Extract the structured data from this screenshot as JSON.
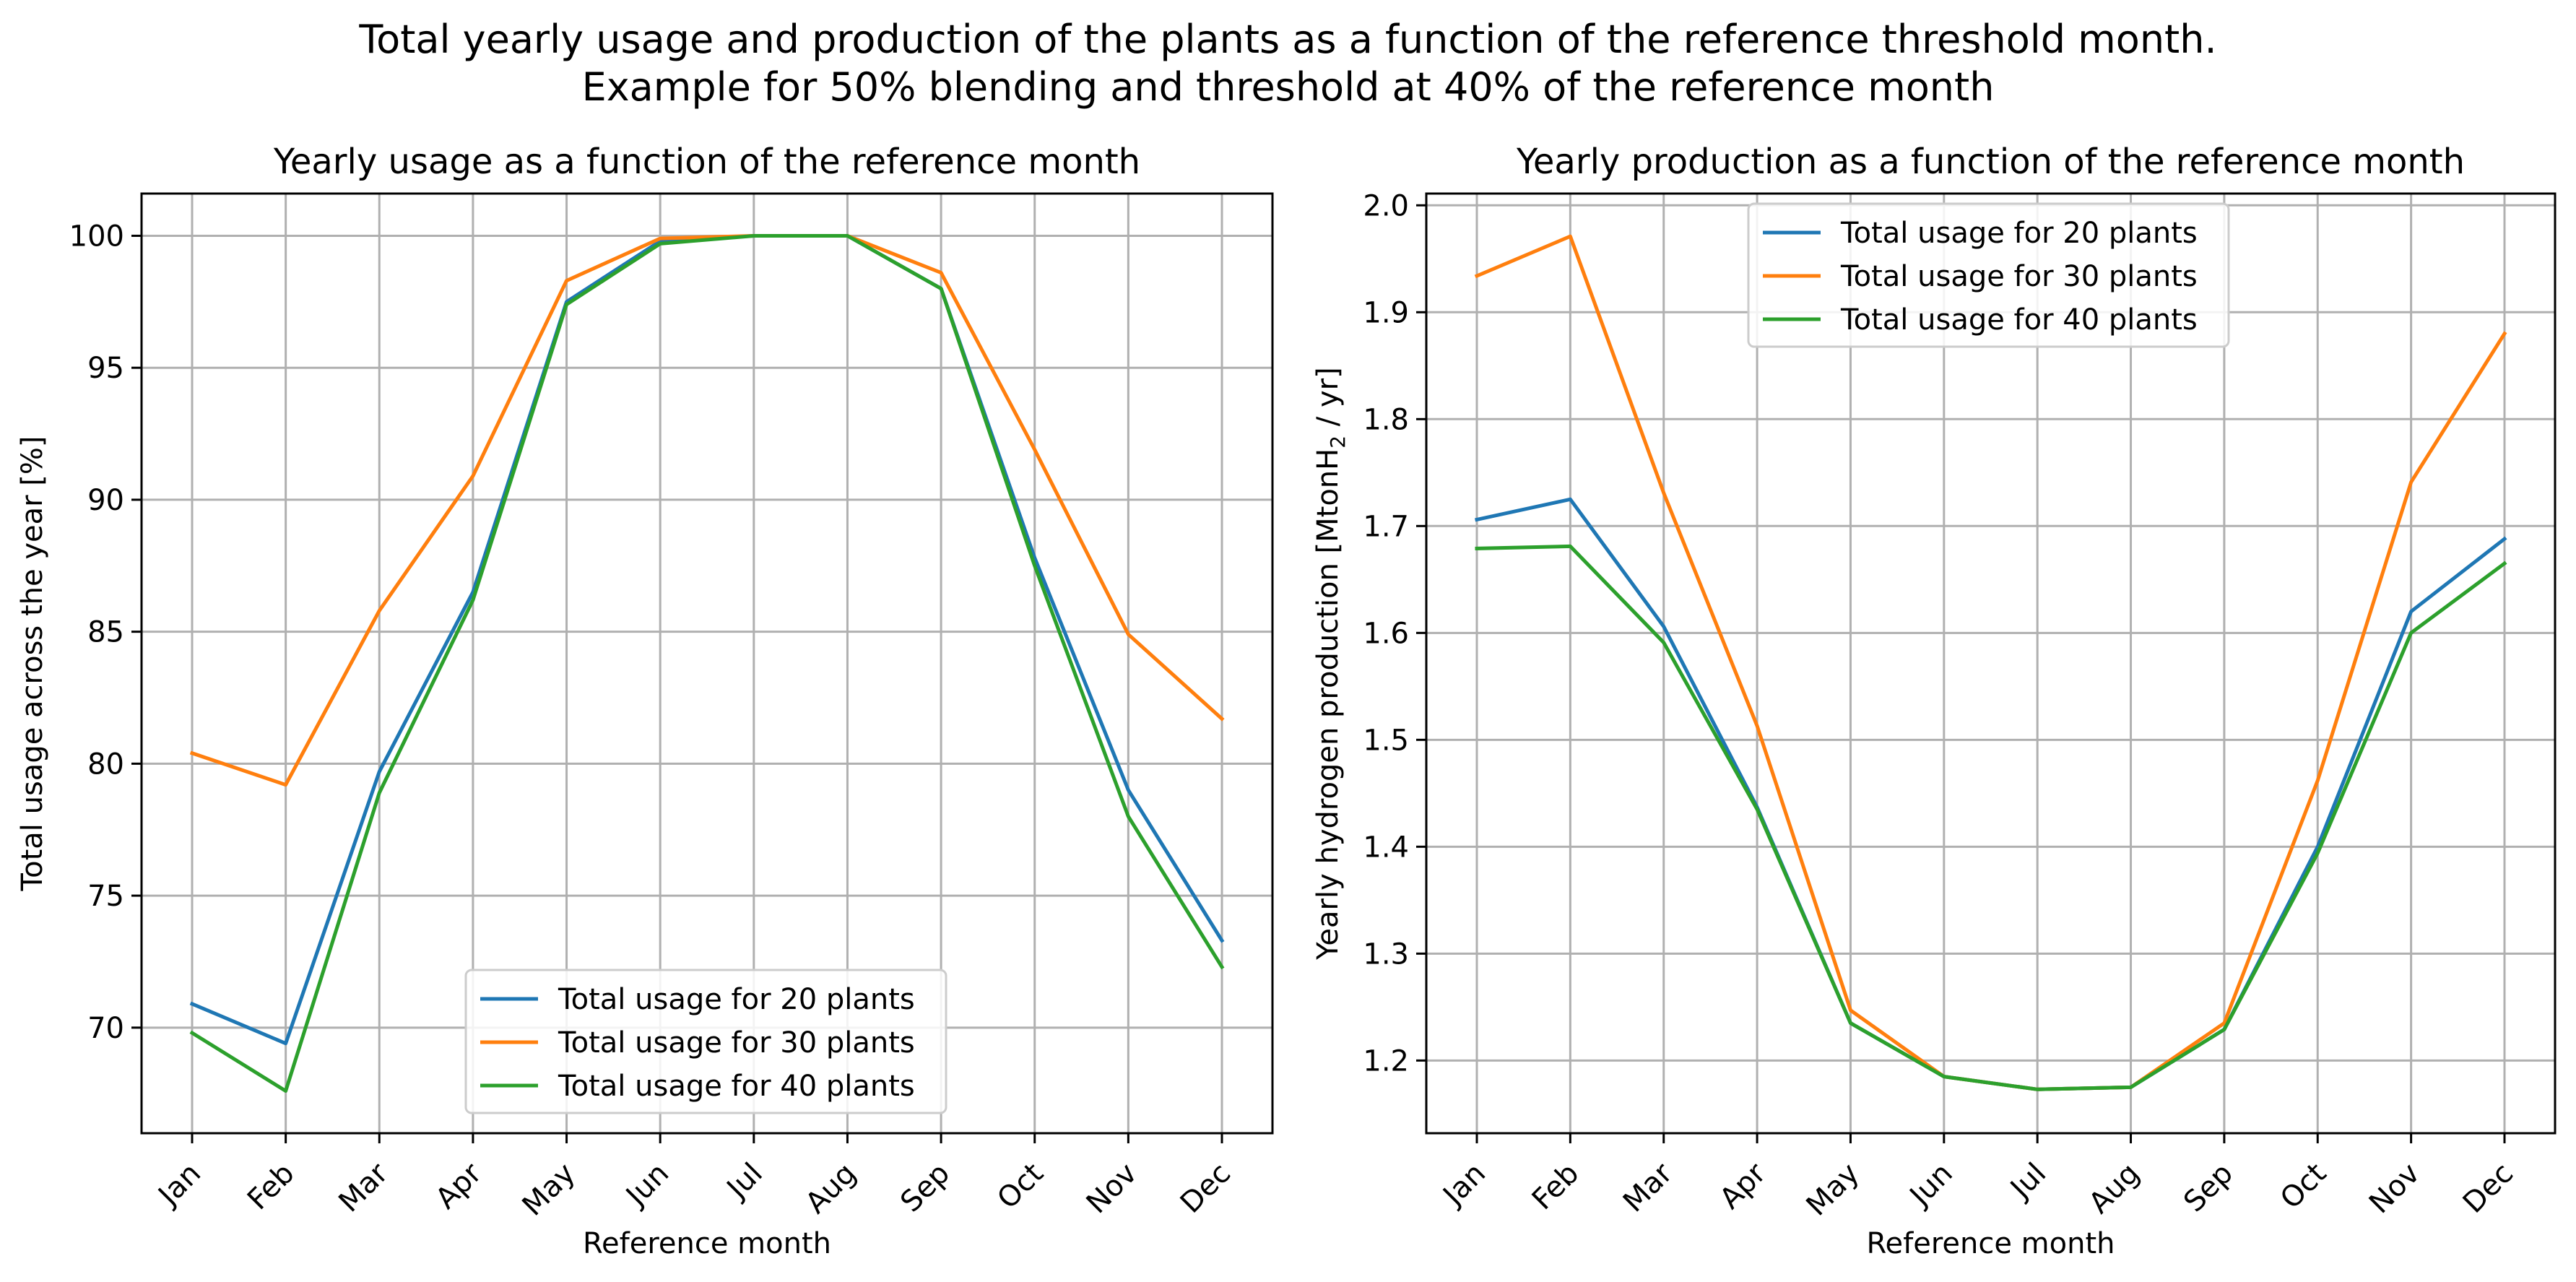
{
  "figure": {
    "suptitle_line1": "Total yearly usage and production of the plants as a function of the reference threshold month.",
    "suptitle_line2": "Example for 50% blending and threshold at 40% of the reference month"
  },
  "colors": {
    "series_20": "#1f77b4",
    "series_30": "#ff7f0e",
    "series_40": "#2ca02c",
    "grid": "#b0b0b0",
    "axis": "#000000"
  },
  "chart_data": [
    {
      "type": "line",
      "title": "Yearly usage as a function of the reference month",
      "xlabel": "Reference month",
      "ylabel": "Total usage across the year [%]",
      "categories": [
        "Jan",
        "Feb",
        "Mar",
        "Apr",
        "May",
        "Jun",
        "Jul",
        "Aug",
        "Sep",
        "Oct",
        "Nov",
        "Dec"
      ],
      "ylim": [
        66.0,
        101.6
      ],
      "yticks": [
        70,
        75,
        80,
        85,
        90,
        95,
        100
      ],
      "ytick_labels": [
        "70",
        "75",
        "80",
        "85",
        "90",
        "95",
        "100"
      ],
      "grid": true,
      "legend_position": "lower center",
      "series": [
        {
          "name": "Total usage for 20 plants",
          "color": "#1f77b4",
          "values": [
            70.9,
            69.4,
            79.7,
            86.5,
            97.5,
            99.8,
            100.0,
            100.0,
            98.0,
            87.8,
            79.0,
            73.3
          ]
        },
        {
          "name": "Total usage for 30 plants",
          "color": "#ff7f0e",
          "values": [
            80.4,
            79.2,
            85.8,
            90.9,
            98.3,
            99.9,
            100.0,
            100.0,
            98.6,
            91.9,
            84.9,
            81.7
          ]
        },
        {
          "name": "Total usage for 40 plants",
          "color": "#2ca02c",
          "values": [
            69.8,
            67.6,
            78.9,
            86.2,
            97.4,
            99.7,
            100.0,
            100.0,
            98.0,
            87.5,
            78.0,
            72.3
          ]
        }
      ]
    },
    {
      "type": "line",
      "title": "Yearly production as a function of the reference month",
      "xlabel": "Reference month",
      "ylabel_main": "Yearly hydrogen production [MtonH",
      "ylabel_sub": "2",
      "ylabel_tail": " / yr]",
      "categories": [
        "Jan",
        "Feb",
        "Mar",
        "Apr",
        "May",
        "Jun",
        "Jul",
        "Aug",
        "Sep",
        "Oct",
        "Nov",
        "Dec"
      ],
      "ylim": [
        1.132,
        2.011
      ],
      "yticks": [
        1.2,
        1.3,
        1.4,
        1.5,
        1.6,
        1.7,
        1.8,
        1.9,
        2.0
      ],
      "ytick_labels": [
        "1.2",
        "1.3",
        "1.4",
        "1.5",
        "1.6",
        "1.7",
        "1.8",
        "1.9",
        "2.0"
      ],
      "grid": true,
      "legend_position": "upper center",
      "series": [
        {
          "name": "Total usage for 20 plants",
          "color": "#1f77b4",
          "values": [
            1.706,
            1.725,
            1.606,
            1.437,
            1.235,
            1.185,
            1.173,
            1.175,
            1.229,
            1.4,
            1.62,
            1.688
          ]
        },
        {
          "name": "Total usage for 30 plants",
          "color": "#ff7f0e",
          "values": [
            1.934,
            1.971,
            1.731,
            1.513,
            1.247,
            1.185,
            1.173,
            1.175,
            1.235,
            1.462,
            1.741,
            1.88
          ]
        },
        {
          "name": "Total usage for 40 plants",
          "color": "#2ca02c",
          "values": [
            1.679,
            1.681,
            1.591,
            1.435,
            1.235,
            1.185,
            1.173,
            1.175,
            1.229,
            1.394,
            1.6,
            1.665
          ]
        }
      ]
    }
  ]
}
